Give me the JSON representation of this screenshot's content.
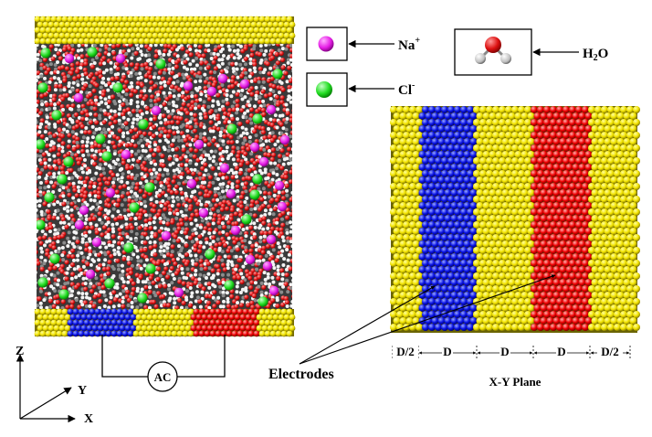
{
  "legend": {
    "sodium": {
      "label": "Na",
      "superscript": "+",
      "color": "#e61ee6"
    },
    "chloride": {
      "label": "Cl",
      "superscript": "-",
      "color": "#22dd22"
    },
    "water": {
      "label_pre": "H",
      "label_sub": "2",
      "label_post": "O"
    }
  },
  "circuit": {
    "source_label": "AC"
  },
  "axes": {
    "z": "Z",
    "y": "Y",
    "x": "X"
  },
  "annotations": {
    "electrodes": "Electrodes",
    "plane": "X-Y Plane"
  },
  "dimensions": [
    "D/2",
    "D",
    "D",
    "D",
    "D/2"
  ],
  "colors": {
    "wall": "#ffff00",
    "wall_dark": "#7a7000",
    "electrode_negative": "#0000dd",
    "electrode_positive": "#ee0000",
    "oxygen": "#cc1111",
    "hydrogen": "#ffffff",
    "hydrogen_alt": "#9a9a9a"
  }
}
